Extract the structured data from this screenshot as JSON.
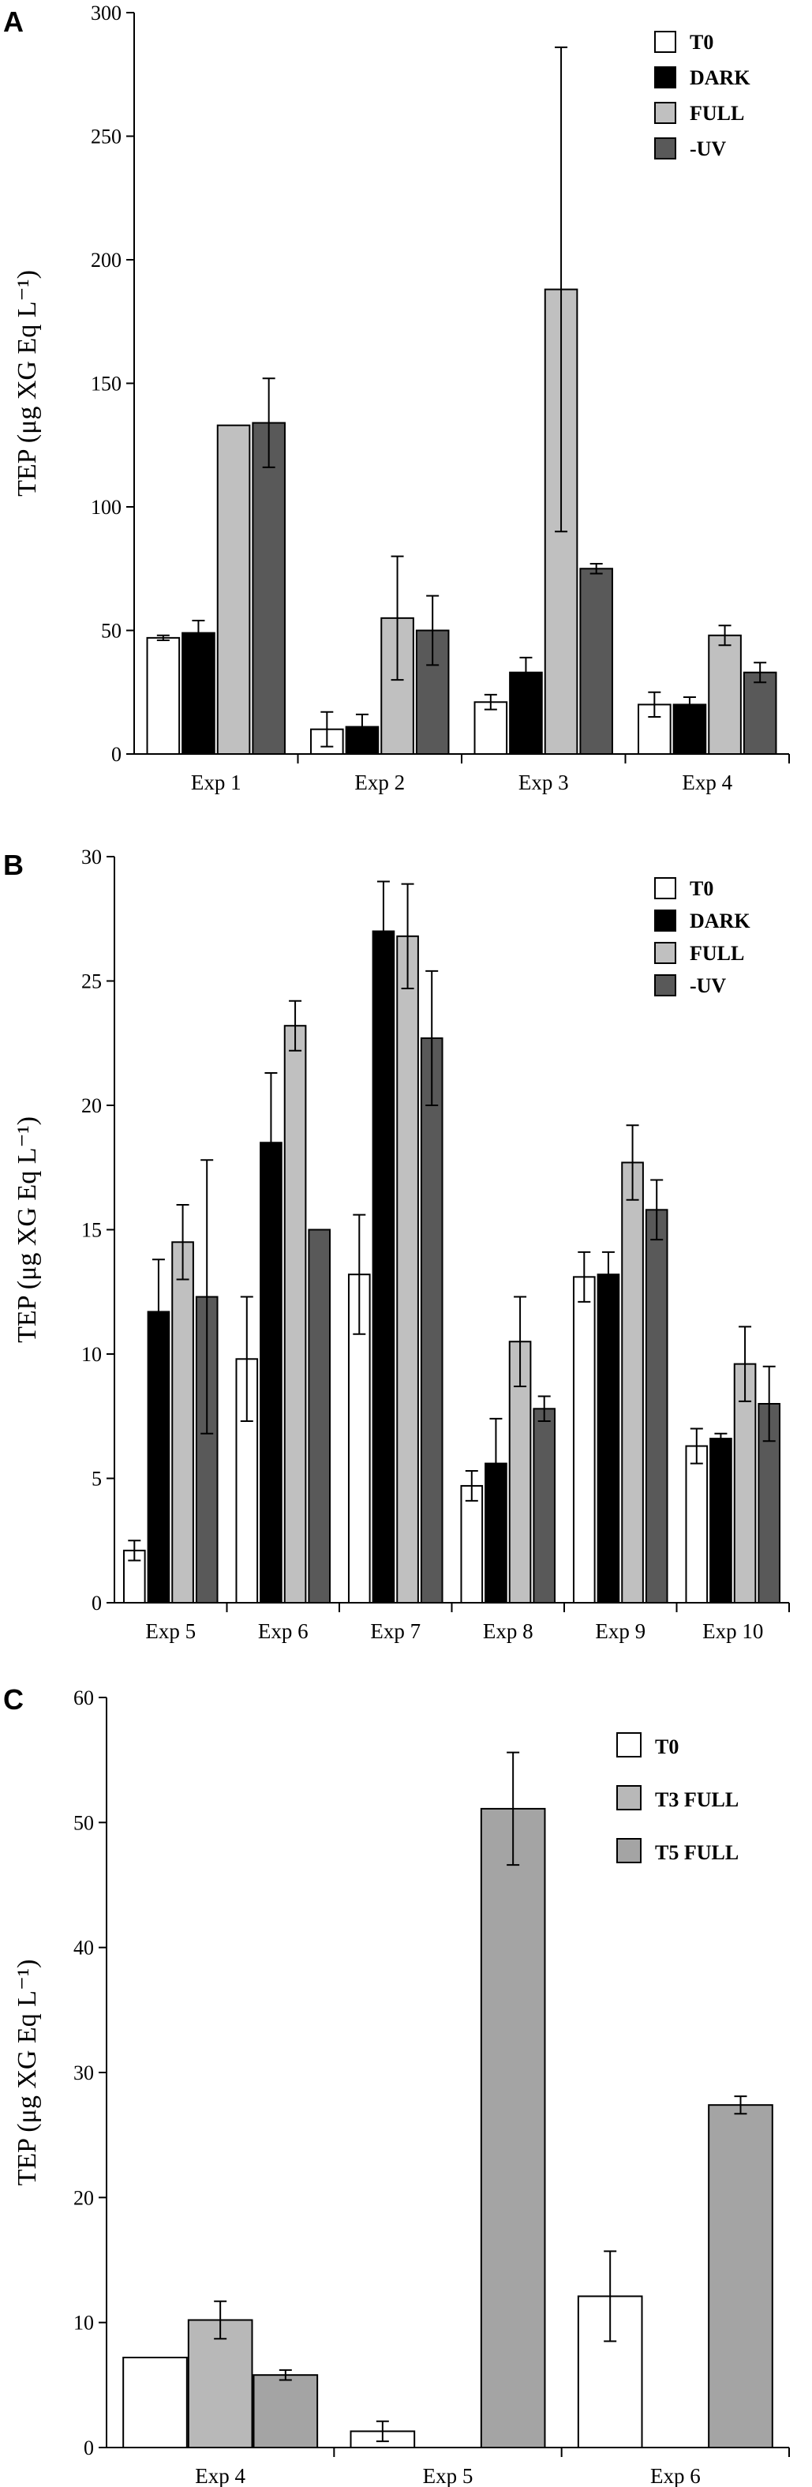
{
  "colors": {
    "T0": "#ffffff",
    "DARK": "#000000",
    "FULL": "#c0c0c0",
    "UV": "#595959",
    "T3FULL": "#b8b8b8",
    "T5FULL": "#a4a4a4",
    "axis": "#000000"
  },
  "chart_data": [
    {
      "panel": "A",
      "type": "bar",
      "ylabel": "TEP (μg XG Eq L⁻¹)",
      "ylim": [
        0,
        300
      ],
      "yticks": [
        0,
        50,
        100,
        150,
        200,
        250,
        300
      ],
      "categories": [
        "Exp 1",
        "Exp 2",
        "Exp 3",
        "Exp 4"
      ],
      "legend_position": "top-right",
      "series": [
        {
          "name": "T0",
          "color_key": "T0",
          "values": [
            47,
            10,
            21,
            20
          ],
          "errors": [
            1,
            7,
            3,
            5
          ]
        },
        {
          "name": "DARK",
          "color_key": "DARK",
          "values": [
            49,
            11,
            33,
            20
          ],
          "errors": [
            5,
            5,
            6,
            3
          ]
        },
        {
          "name": "FULL",
          "color_key": "FULL",
          "values": [
            133,
            55,
            188,
            48
          ],
          "errors": [
            0,
            25,
            98,
            4
          ]
        },
        {
          "name": "-UV",
          "color_key": "UV",
          "values": [
            134,
            50,
            75,
            33
          ],
          "errors": [
            18,
            14,
            2,
            4
          ]
        }
      ]
    },
    {
      "panel": "B",
      "type": "bar",
      "ylabel": "TEP (μg XG Eq L⁻¹)",
      "ylim": [
        0,
        30
      ],
      "yticks": [
        0,
        5,
        10,
        15,
        20,
        25,
        30
      ],
      "categories": [
        "Exp 5",
        "Exp 6",
        "Exp 7",
        "Exp 8",
        "Exp 9",
        "Exp 10"
      ],
      "legend_position": "top-right",
      "series": [
        {
          "name": "T0",
          "color_key": "T0",
          "values": [
            2.1,
            9.8,
            13.2,
            4.7,
            13.1,
            6.3
          ],
          "errors": [
            0.4,
            2.5,
            2.4,
            0.6,
            1.0,
            0.7
          ]
        },
        {
          "name": "DARK",
          "color_key": "DARK",
          "values": [
            11.7,
            18.5,
            27.0,
            5.6,
            13.2,
            6.6
          ],
          "errors": [
            2.1,
            2.8,
            2.0,
            1.8,
            0.9,
            0.2
          ]
        },
        {
          "name": "FULL",
          "color_key": "FULL",
          "values": [
            14.5,
            23.2,
            26.8,
            10.5,
            17.7,
            9.6
          ],
          "errors": [
            1.5,
            1.0,
            2.1,
            1.8,
            1.5,
            1.5
          ]
        },
        {
          "name": "-UV",
          "color_key": "UV",
          "values": [
            12.3,
            15.0,
            22.7,
            7.8,
            15.8,
            8.0
          ],
          "errors": [
            5.5,
            0,
            2.7,
            0.5,
            1.2,
            1.5
          ]
        }
      ]
    },
    {
      "panel": "C",
      "type": "bar",
      "ylabel": "TEP (μg XG Eq L⁻¹)",
      "ylim": [
        0,
        60
      ],
      "yticks": [
        0,
        10,
        20,
        30,
        40,
        50,
        60
      ],
      "categories": [
        "Exp 4",
        "Exp 5",
        "Exp 6"
      ],
      "legend_position": "top-right",
      "series": [
        {
          "name": "T0",
          "color_key": "T0",
          "values": [
            7.2,
            1.3,
            12.1
          ],
          "errors": [
            0,
            0.8,
            3.6
          ]
        },
        {
          "name": "T3 FULL",
          "color_key": "T3FULL",
          "values": [
            10.2,
            null,
            null
          ],
          "errors": [
            1.5,
            null,
            null
          ]
        },
        {
          "name": "T5 FULL",
          "color_key": "T5FULL",
          "values": [
            5.8,
            51.1,
            27.4
          ],
          "errors": [
            0.4,
            4.5,
            0.7
          ]
        }
      ]
    }
  ]
}
